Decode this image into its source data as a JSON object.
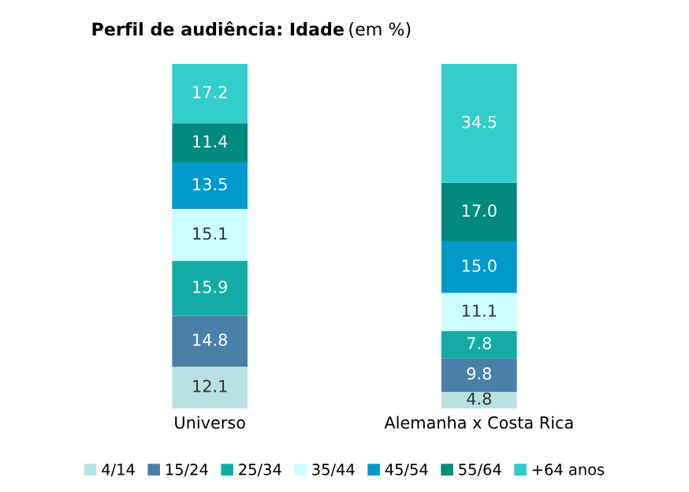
{
  "chart_data": {
    "type": "bar",
    "stacked": true,
    "title": "Perfil de audiência: Idade",
    "subtitle": "(em %)",
    "categories": [
      "Universo",
      "Alemanha x Costa Rica"
    ],
    "series": [
      {
        "name": "4/14",
        "color": "#b9e0e3",
        "values": [
          12.1,
          4.8
        ],
        "value_labels": [
          "12.1",
          "4.8"
        ]
      },
      {
        "name": "15/24",
        "color": "#4a7fa8",
        "values": [
          14.8,
          9.8
        ],
        "value_labels": [
          "14.8",
          "9.8"
        ]
      },
      {
        "name": "25/34",
        "color": "#12aca4",
        "values": [
          15.9,
          7.8
        ],
        "value_labels": [
          "15.9",
          "7.8"
        ]
      },
      {
        "name": "35/44",
        "color": "#ccffff",
        "values": [
          15.1,
          11.1
        ],
        "value_labels": [
          "15.1",
          "11.1"
        ]
      },
      {
        "name": "45/54",
        "color": "#0099cc",
        "values": [
          13.5,
          15.0
        ],
        "value_labels": [
          "13.5",
          "15.0"
        ]
      },
      {
        "name": "55/64",
        "color": "#008a80",
        "values": [
          11.4,
          17.0
        ],
        "value_labels": [
          "11.4",
          "17.0"
        ]
      },
      {
        "name": "+64 anos",
        "color": "#33cccc",
        "values": [
          17.2,
          34.5
        ],
        "value_labels": [
          "17.2",
          "34.5"
        ]
      }
    ],
    "legend": "bottom",
    "grid": false,
    "tick_labels": "x"
  }
}
